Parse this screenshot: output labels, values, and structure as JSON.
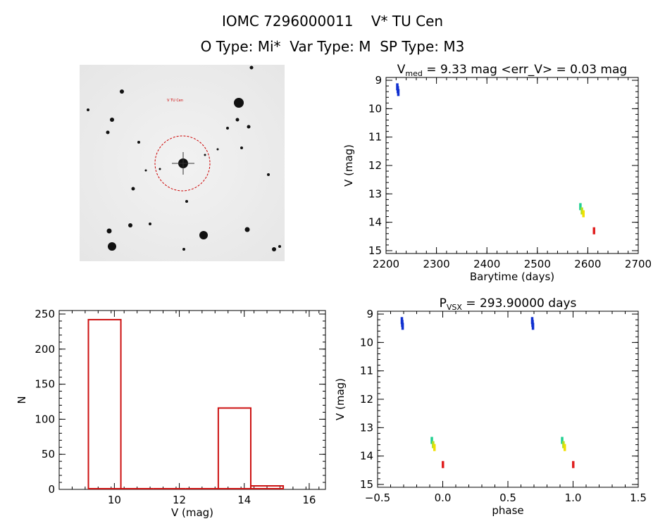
{
  "header": {
    "line1": "IOMC 7296000011    V* TU Cen",
    "line2": "O Type: Mi*  Var Type: M  SP Type: M3"
  },
  "sky_image": {
    "target_label": "V TU Cen",
    "circle_color": "#cc0000"
  },
  "chart_data": [
    {
      "id": "light-curve",
      "type": "scatter",
      "title_prefix": "V",
      "title_sub": "med",
      "title_rest": " = 9.33 mag <err_V> = 0.03 mag",
      "xlabel": "Barytime (days)",
      "ylabel": "V (mag)",
      "xlim": [
        2200,
        2700
      ],
      "ylim": [
        15.1,
        8.9
      ],
      "y_inverted": true,
      "xticks": [
        2200,
        2300,
        2400,
        2500,
        2600,
        2700
      ],
      "yticks": [
        9,
        10,
        11,
        12,
        13,
        14,
        15
      ],
      "points": [
        {
          "x": 2222,
          "y": 9.23,
          "color": "#1030d0"
        },
        {
          "x": 2223,
          "y": 9.33,
          "color": "#1030d0"
        },
        {
          "x": 2224,
          "y": 9.43,
          "color": "#1030d0"
        },
        {
          "x": 2585,
          "y": 13.45,
          "color": "#20d090"
        },
        {
          "x": 2588,
          "y": 13.6,
          "color": "#b0e020"
        },
        {
          "x": 2591,
          "y": 13.7,
          "color": "#f0e000"
        },
        {
          "x": 2612,
          "y": 14.3,
          "color": "#e02020"
        }
      ]
    },
    {
      "id": "histogram",
      "type": "bar",
      "xlabel": "V (mag)",
      "ylabel": "N",
      "xlim": [
        8.3,
        16.5
      ],
      "ylim": [
        0,
        255
      ],
      "xticks": [
        10,
        12,
        14,
        16
      ],
      "yticks": [
        0,
        50,
        100,
        150,
        200,
        250
      ],
      "bar_color": "#cc1111",
      "bins": [
        {
          "x0": 9.2,
          "x1": 10.2,
          "value": 242
        },
        {
          "x0": 10.2,
          "x1": 11.2,
          "value": 0
        },
        {
          "x0": 11.2,
          "x1": 12.2,
          "value": 0
        },
        {
          "x0": 12.2,
          "x1": 13.2,
          "value": 0
        },
        {
          "x0": 13.2,
          "x1": 14.2,
          "value": 116
        },
        {
          "x0": 14.2,
          "x1": 15.2,
          "value": 5
        }
      ]
    },
    {
      "id": "phase-curve",
      "type": "scatter",
      "title_prefix": "P",
      "title_sub": "VSX",
      "title_rest": " = 293.90000 days",
      "xlabel": "phase",
      "ylabel": "V (mag)",
      "xlim": [
        -0.5,
        1.5
      ],
      "ylim": [
        15.1,
        8.9
      ],
      "y_inverted": true,
      "xticks": [
        -0.5,
        0.0,
        0.5,
        1.0,
        1.5
      ],
      "xtick_labels": [
        "−0.5",
        "0.0",
        "0.5",
        "1.0",
        "1.5"
      ],
      "yticks": [
        9,
        10,
        11,
        12,
        13,
        14,
        15
      ],
      "points": [
        {
          "x": -0.315,
          "y": 9.23,
          "color": "#1030d0"
        },
        {
          "x": -0.312,
          "y": 9.33,
          "color": "#1030d0"
        },
        {
          "x": -0.309,
          "y": 9.43,
          "color": "#1030d0"
        },
        {
          "x": -0.085,
          "y": 13.45,
          "color": "#20d090"
        },
        {
          "x": -0.075,
          "y": 13.6,
          "color": "#b0e020"
        },
        {
          "x": -0.065,
          "y": 13.7,
          "color": "#f0e000"
        },
        {
          "x": 0.0,
          "y": 14.3,
          "color": "#e02020"
        },
        {
          "x": 0.685,
          "y": 9.23,
          "color": "#1030d0"
        },
        {
          "x": 0.688,
          "y": 9.33,
          "color": "#1030d0"
        },
        {
          "x": 0.691,
          "y": 9.43,
          "color": "#1030d0"
        },
        {
          "x": 0.915,
          "y": 13.45,
          "color": "#20d090"
        },
        {
          "x": 0.925,
          "y": 13.6,
          "color": "#b0e020"
        },
        {
          "x": 0.935,
          "y": 13.7,
          "color": "#f0e000"
        },
        {
          "x": 1.0,
          "y": 14.3,
          "color": "#e02020"
        }
      ]
    }
  ]
}
